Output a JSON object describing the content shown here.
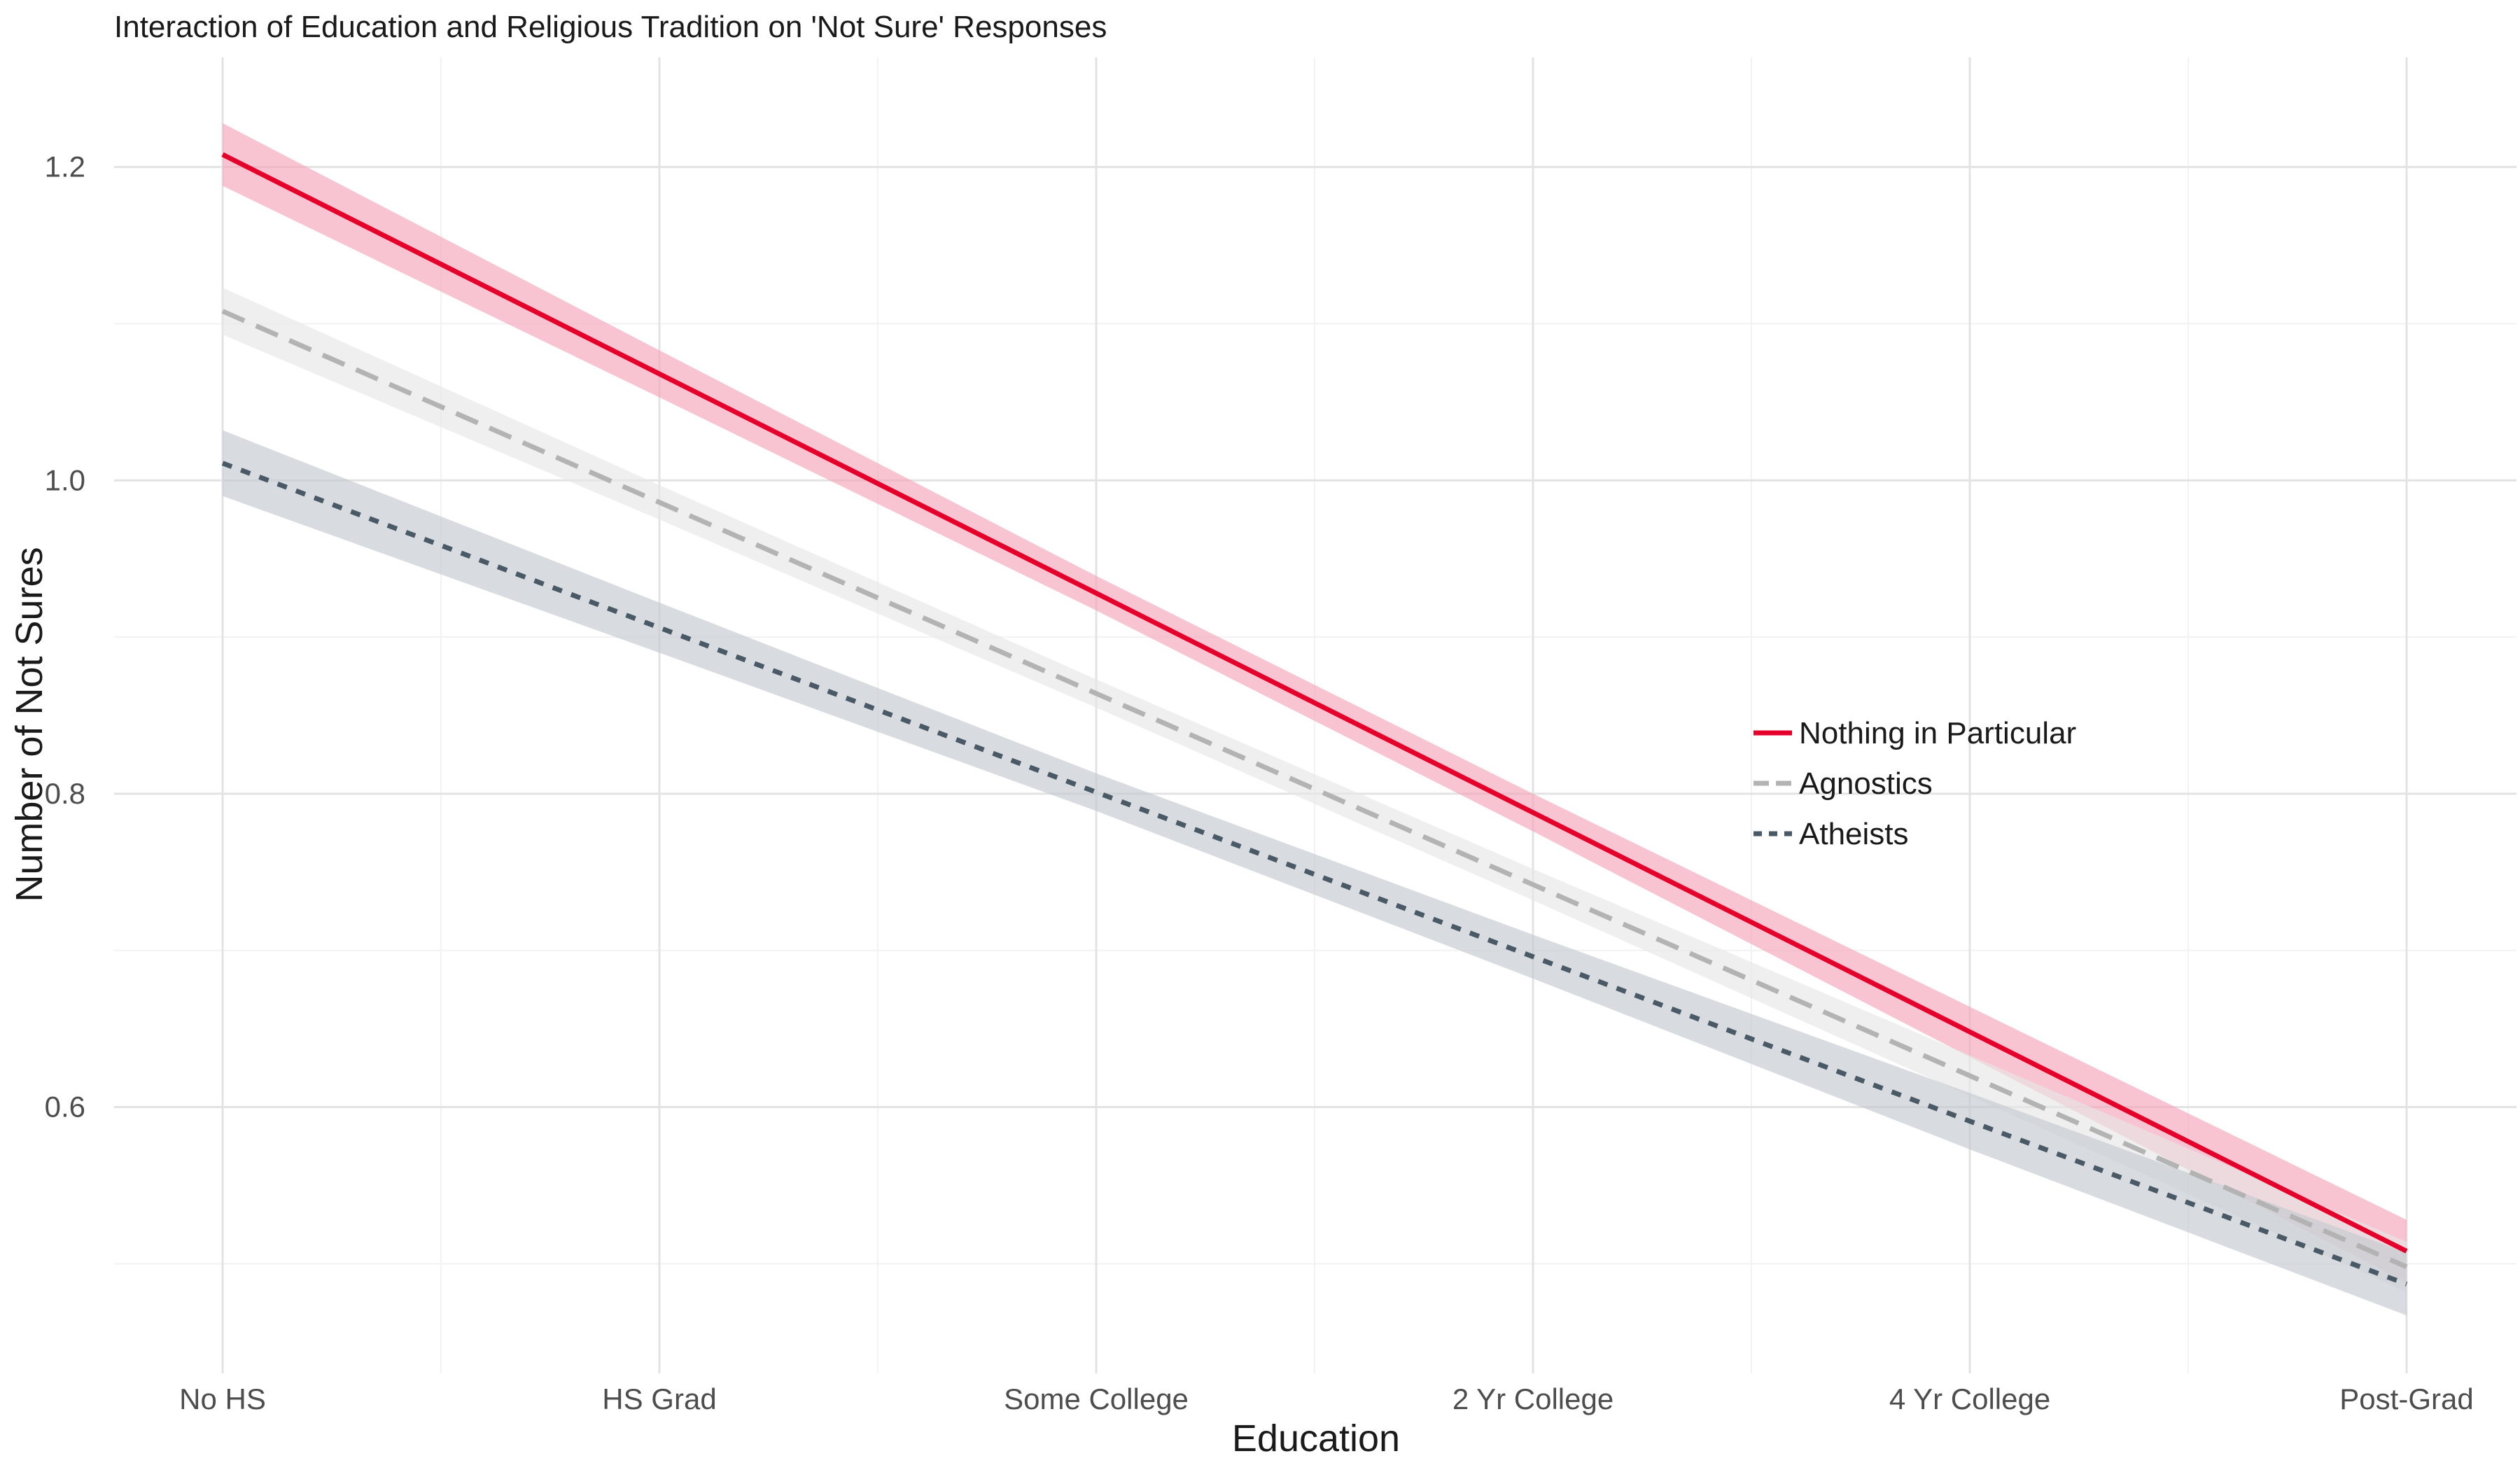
{
  "chart_data": {
    "type": "line",
    "title": "Interaction of Education and Religious Tradition on 'Not Sure' Responses",
    "xlabel": "Education",
    "ylabel": "Number of Not Sures",
    "categories": [
      "No HS",
      "HS Grad",
      "Some College",
      "2 Yr College",
      "4 Yr College",
      "Post-Grad"
    ],
    "ylim": [
      0.43,
      1.27
    ],
    "yticks": [
      0.6,
      0.8,
      1.0,
      1.2
    ],
    "ytick_labels": [
      "0.6",
      "0.8",
      "1.0",
      "1.2"
    ],
    "grid": true,
    "legend_position": "center-right",
    "series": [
      {
        "name": "Nothing in Particular",
        "values": [
          1.208,
          1.068,
          0.928,
          0.788,
          0.648,
          0.508
        ],
        "lower": [
          1.188,
          1.053,
          0.917,
          0.776,
          0.632,
          0.488
        ],
        "upper": [
          1.228,
          1.083,
          0.939,
          0.8,
          0.664,
          0.528
        ],
        "color": "#e4002b",
        "band_color": "#f4a5b8",
        "dash": "solid"
      },
      {
        "name": "Agnostics",
        "values": [
          1.108,
          0.986,
          0.864,
          0.742,
          0.62,
          0.498
        ],
        "lower": [
          1.093,
          0.975,
          0.855,
          0.732,
          0.607,
          0.482
        ],
        "upper": [
          1.123,
          0.997,
          0.873,
          0.752,
          0.633,
          0.514
        ],
        "color": "#b3b3b3",
        "band_color": "#e6e6e6",
        "dash": "dashed"
      },
      {
        "name": "Atheists",
        "values": [
          1.011,
          0.906,
          0.801,
          0.696,
          0.591,
          0.487
        ],
        "lower": [
          0.99,
          0.89,
          0.789,
          0.682,
          0.573,
          0.467
        ],
        "upper": [
          1.032,
          0.922,
          0.813,
          0.71,
          0.609,
          0.507
        ],
        "color": "#4a5966",
        "band_color": "#c3c9cf",
        "dash": "dotted"
      }
    ]
  }
}
